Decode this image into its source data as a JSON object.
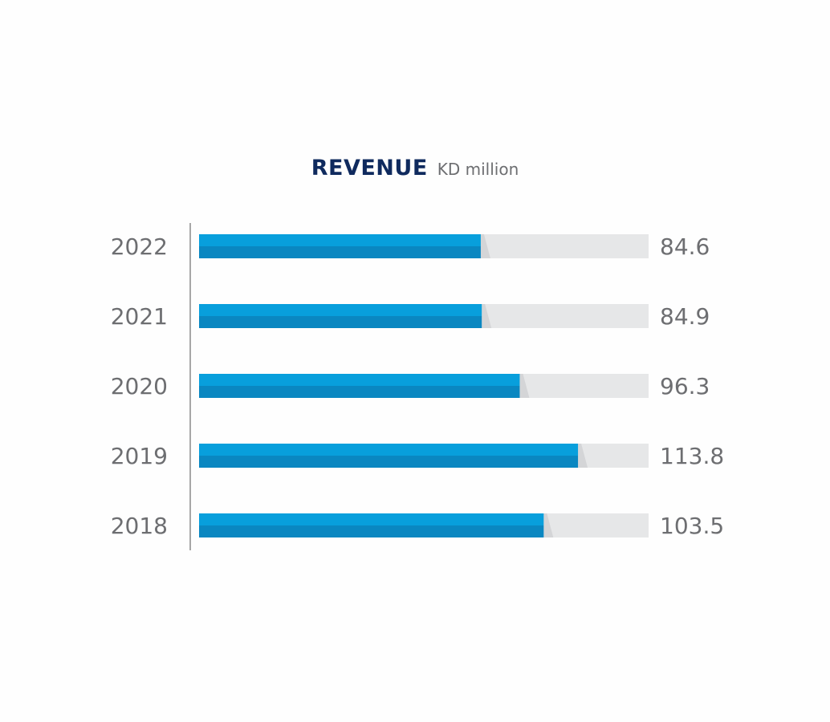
{
  "chart_data": {
    "type": "bar",
    "orientation": "horizontal",
    "title": "REVENUE",
    "subtitle": "KD million",
    "categories": [
      "2022",
      "2021",
      "2020",
      "2019",
      "2018"
    ],
    "values": [
      84.6,
      84.9,
      96.3,
      113.8,
      103.5
    ],
    "value_labels": [
      "84.6",
      "84.9",
      "96.3",
      "113.8",
      "103.5"
    ],
    "xlim": [
      0,
      135
    ],
    "grid": false,
    "legend": "none",
    "colors": {
      "bar_top": "#089fdc",
      "bar_bottom": "#0a87c1",
      "track": "#e6e7e8",
      "axis": "#8a8a8a",
      "label_text": "#6d6e71",
      "title": "#0f2a5e"
    }
  }
}
